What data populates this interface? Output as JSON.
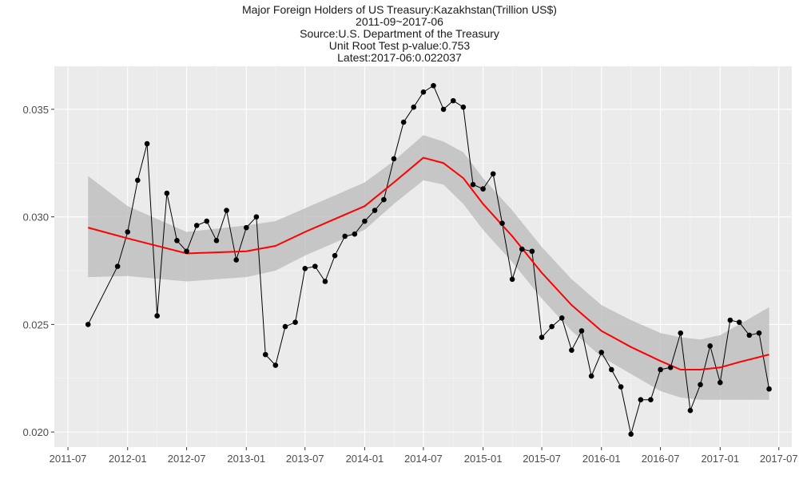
{
  "chart_data": {
    "type": "line",
    "title_lines": [
      "Major Foreign Holders of US Treasury:Kazakhstan(Trillion US$)",
      "2011-09~2017-06",
      "Source:U.S. Department of the Treasury",
      "Unit Root Test p-value:0.753",
      "Latest:2017-06:0.022037"
    ],
    "xlabel": "",
    "ylabel": "",
    "x_ticks": [
      "2011-07",
      "2012-01",
      "2012-07",
      "2013-01",
      "2013-07",
      "2014-01",
      "2014-07",
      "2015-01",
      "2015-07",
      "2016-01",
      "2016-07",
      "2017-01",
      "2017-07"
    ],
    "y_ticks": [
      0.02,
      0.025,
      0.03,
      0.035
    ],
    "y_tick_labels": [
      "0.020",
      "0.025",
      "0.030",
      "0.035"
    ],
    "xlim": [
      "2011-05-20",
      "2017-08-10"
    ],
    "ylim": [
      0.0193,
      0.037
    ],
    "grid": true,
    "series": [
      {
        "x": [
          "2011-09",
          "2011-12",
          "2012-01",
          "2012-02",
          "2012-03",
          "2012-04",
          "2012-05",
          "2012-06",
          "2012-07",
          "2012-08",
          "2012-09",
          "2012-10",
          "2012-11",
          "2012-12",
          "2013-01",
          "2013-02",
          "2013-03",
          "2013-04",
          "2013-05",
          "2013-06",
          "2013-07",
          "2013-08",
          "2013-09",
          "2013-10",
          "2013-11",
          "2013-12",
          "2014-01",
          "2014-02",
          "2014-03",
          "2014-04",
          "2014-05",
          "2014-06",
          "2014-07",
          "2014-08",
          "2014-09",
          "2014-10",
          "2014-11",
          "2014-12",
          "2015-01",
          "2015-02",
          "2015-03",
          "2015-04",
          "2015-05",
          "2015-06",
          "2015-07",
          "2015-08",
          "2015-09",
          "2015-10",
          "2015-11",
          "2015-12",
          "2016-01",
          "2016-02",
          "2016-03",
          "2016-04",
          "2016-05",
          "2016-06",
          "2016-07",
          "2016-08",
          "2016-09",
          "2016-10",
          "2016-11",
          "2016-12",
          "2017-01",
          "2017-02",
          "2017-03",
          "2017-04",
          "2017-05",
          "2017-06"
        ],
        "values": [
          0.025,
          0.0277,
          0.0293,
          0.0317,
          0.0334,
          0.0254,
          0.0311,
          0.0289,
          0.0284,
          0.0296,
          0.0298,
          0.0289,
          0.0303,
          0.028,
          0.0295,
          0.03,
          0.0236,
          0.0231,
          0.0249,
          0.0251,
          0.0276,
          0.0277,
          0.027,
          0.0282,
          0.0291,
          0.0292,
          0.0298,
          0.0303,
          0.0308,
          0.0327,
          0.0344,
          0.0351,
          0.0358,
          0.0361,
          0.035,
          0.0354,
          0.0351,
          0.0315,
          0.0313,
          0.032,
          0.0297,
          0.0271,
          0.0285,
          0.0284,
          0.0244,
          0.0249,
          0.0253,
          0.0238,
          0.0247,
          0.0226,
          0.0237,
          0.0229,
          0.0221,
          0.0199,
          0.0215,
          0.0215,
          0.0229,
          0.023,
          0.0246,
          0.021,
          0.0222,
          0.024,
          0.0223,
          0.0252,
          0.0251,
          0.0245,
          0.0246,
          0.022
        ],
        "color": "#000000"
      }
    ],
    "smooth": {
      "color": "#ff0000",
      "band_color": "#bdbdbd",
      "x": [
        "2011-09",
        "2012-01",
        "2012-07",
        "2013-01",
        "2013-04",
        "2013-07",
        "2013-10",
        "2014-01",
        "2014-04",
        "2014-07",
        "2014-09",
        "2014-11",
        "2015-01",
        "2015-04",
        "2015-07",
        "2015-10",
        "2016-01",
        "2016-04",
        "2016-07",
        "2016-09",
        "2016-11",
        "2017-01",
        "2017-03",
        "2017-06"
      ],
      "fit": [
        0.0295,
        0.029,
        0.0283,
        0.0284,
        0.02865,
        0.0293,
        0.0299,
        0.0305,
        0.0316,
        0.03275,
        0.0325,
        0.0318,
        0.0306,
        0.0291,
        0.0274,
        0.0259,
        0.0247,
        0.02395,
        0.0233,
        0.0229,
        0.0229,
        0.023,
        0.02325,
        0.0236
      ],
      "lower": [
        0.0272,
        0.02725,
        0.027,
        0.0272,
        0.0275,
        0.0282,
        0.0288,
        0.0294,
        0.0306,
        0.0317,
        0.0315,
        0.0306,
        0.0294,
        0.0279,
        0.0262,
        0.0247,
        0.0235,
        0.0227,
        0.0219,
        0.0216,
        0.0215,
        0.0215,
        0.0215,
        0.0215
      ],
      "upper": [
        0.0319,
        0.0305,
        0.0293,
        0.0296,
        0.0298,
        0.0304,
        0.031,
        0.0316,
        0.0326,
        0.0338,
        0.0335,
        0.033,
        0.0318,
        0.0303,
        0.0286,
        0.0271,
        0.0259,
        0.0252,
        0.0246,
        0.0244,
        0.0243,
        0.0245,
        0.025,
        0.0258
      ]
    },
    "colors": {
      "panel_bg": "#ebebeb",
      "grid_major": "#ffffff",
      "grid_minor": "#f5f5f5",
      "point": "#000000",
      "tick_text": "#4d4d4d"
    }
  }
}
